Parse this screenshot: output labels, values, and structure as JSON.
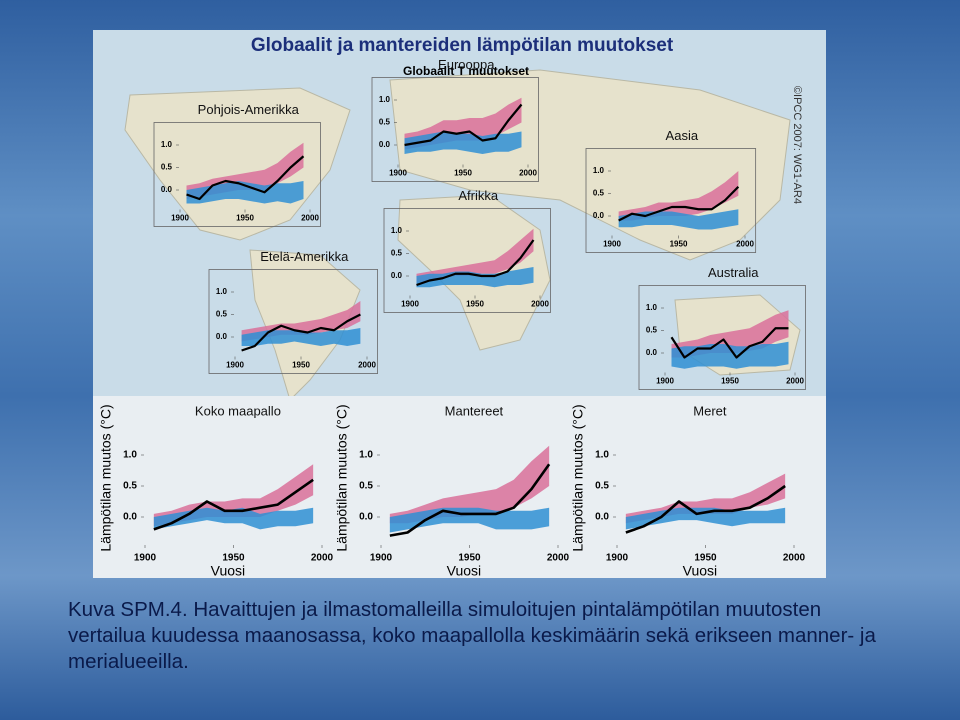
{
  "figure_title": "Globaalit ja mantereiden lämpötilan muutokset",
  "overlay_label": "Globaalit T muutokset",
  "copyright": "©IPCC 2007: WG1-AR4",
  "caption": "Kuva SPM.4. Havaittujen ja ilmastomalleilla simuloitujen pintalämpötilan muutosten vertailua kuudessa maanosassa, koko maapallolla keskimäärin sekä erikseen manner- ja merialueeilla.",
  "chart_data": [
    {
      "type": "line",
      "title": "Pohjois-Amerikka",
      "x": [
        1905,
        1915,
        1925,
        1935,
        1945,
        1955,
        1965,
        1975,
        1985,
        1995
      ],
      "xlim": [
        1900,
        2005
      ],
      "xticks": [
        1900,
        1950,
        2000
      ],
      "ylim": [
        -0.5,
        1.5
      ],
      "yticks": [
        {
          "value": 0,
          "label": "0.0"
        },
        {
          "value": 0.5,
          "label": "0.5"
        },
        {
          "value": 1,
          "label": "1.0"
        }
      ],
      "series": [
        {
          "color": "#000000",
          "values": [
            -0.1,
            -0.2,
            0.1,
            0.2,
            0.15,
            0.05,
            -0.05,
            0.2,
            0.5,
            0.75
          ]
        }
      ],
      "bands": [
        {
          "color": "#d9709a",
          "low": [
            -0.2,
            -0.15,
            -0.1,
            -0.05,
            0,
            0,
            0,
            0.15,
            0.3,
            0.5
          ],
          "high": [
            0.1,
            0.15,
            0.25,
            0.3,
            0.35,
            0.4,
            0.45,
            0.6,
            0.85,
            1.05
          ]
        },
        {
          "color": "#2f8fd3",
          "low": [
            -0.3,
            -0.3,
            -0.25,
            -0.2,
            -0.2,
            -0.25,
            -0.3,
            -0.25,
            -0.3,
            -0.2
          ],
          "high": [
            0.0,
            0.05,
            0.1,
            0.15,
            0.2,
            0.15,
            0.1,
            0.15,
            0.15,
            0.2
          ]
        }
      ]
    },
    {
      "type": "line",
      "title": "Eurooppa",
      "x": [
        1905,
        1915,
        1925,
        1935,
        1945,
        1955,
        1965,
        1975,
        1985,
        1995
      ],
      "xlim": [
        1900,
        2005
      ],
      "xticks": [
        1900,
        1950,
        2000
      ],
      "ylim": [
        -0.5,
        1.5
      ],
      "yticks": [
        {
          "value": 0,
          "label": "0.0"
        },
        {
          "value": 0.5,
          "label": "0.5"
        },
        {
          "value": 1,
          "label": "1.0"
        }
      ],
      "series": [
        {
          "color": "#000000",
          "values": [
            0.0,
            0.05,
            0.1,
            0.3,
            0.25,
            0.3,
            0.1,
            0.15,
            0.55,
            0.9
          ]
        }
      ],
      "bands": [
        {
          "color": "#d9709a",
          "low": [
            -0.1,
            -0.05,
            0,
            0.05,
            0.1,
            0.1,
            0.1,
            0.2,
            0.35,
            0.5
          ],
          "high": [
            0.25,
            0.3,
            0.4,
            0.55,
            0.55,
            0.6,
            0.6,
            0.7,
            0.9,
            1.05
          ]
        },
        {
          "color": "#2f8fd3",
          "low": [
            -0.2,
            -0.15,
            -0.15,
            -0.1,
            -0.1,
            -0.15,
            -0.2,
            -0.15,
            -0.15,
            -0.05
          ],
          "high": [
            0.15,
            0.2,
            0.25,
            0.3,
            0.25,
            0.25,
            0.2,
            0.25,
            0.25,
            0.3
          ]
        }
      ]
    },
    {
      "type": "line",
      "title": "Aasia",
      "x": [
        1905,
        1915,
        1925,
        1935,
        1945,
        1955,
        1965,
        1975,
        1985,
        1995
      ],
      "xlim": [
        1900,
        2005
      ],
      "xticks": [
        1900,
        1950,
        2000
      ],
      "ylim": [
        -0.5,
        1.5
      ],
      "yticks": [
        {
          "value": 0,
          "label": "0.0"
        },
        {
          "value": 0.5,
          "label": "0.5"
        },
        {
          "value": 1,
          "label": "1.0"
        }
      ],
      "series": [
        {
          "color": "#000000",
          "values": [
            -0.1,
            0.05,
            0.0,
            0.1,
            0.2,
            0.2,
            0.15,
            0.15,
            0.35,
            0.65
          ]
        }
      ],
      "bands": [
        {
          "color": "#d9709a",
          "low": [
            -0.1,
            -0.1,
            -0.05,
            0,
            0,
            0,
            0.05,
            0.15,
            0.3,
            0.45
          ],
          "high": [
            0.1,
            0.15,
            0.2,
            0.3,
            0.3,
            0.35,
            0.4,
            0.55,
            0.75,
            1.0
          ]
        },
        {
          "color": "#2f8fd3",
          "low": [
            -0.25,
            -0.25,
            -0.2,
            -0.2,
            -0.2,
            -0.25,
            -0.3,
            -0.3,
            -0.25,
            -0.2
          ],
          "high": [
            0.0,
            0.05,
            0.1,
            0.1,
            0.1,
            0.05,
            0.0,
            0.05,
            0.1,
            0.15
          ]
        }
      ]
    },
    {
      "type": "line",
      "title": "Afrikka",
      "x": [
        1905,
        1915,
        1925,
        1935,
        1945,
        1955,
        1965,
        1975,
        1985,
        1995
      ],
      "xlim": [
        1900,
        2005
      ],
      "xticks": [
        1900,
        1950,
        2000
      ],
      "ylim": [
        -0.5,
        1.5
      ],
      "yticks": [
        {
          "value": 0,
          "label": "0.0"
        },
        {
          "value": 0.5,
          "label": "0.5"
        },
        {
          "value": 1,
          "label": "1.0"
        }
      ],
      "series": [
        {
          "color": "#000000",
          "values": [
            -0.2,
            -0.1,
            -0.05,
            0.05,
            0.05,
            0.0,
            0.0,
            0.1,
            0.4,
            0.8
          ]
        }
      ],
      "bands": [
        {
          "color": "#d9709a",
          "low": [
            -0.15,
            -0.1,
            -0.05,
            0,
            0,
            0.05,
            0.05,
            0.15,
            0.3,
            0.55
          ],
          "high": [
            0.05,
            0.1,
            0.15,
            0.2,
            0.25,
            0.3,
            0.35,
            0.55,
            0.8,
            1.05
          ]
        },
        {
          "color": "#2f8fd3",
          "low": [
            -0.25,
            -0.25,
            -0.2,
            -0.2,
            -0.2,
            -0.2,
            -0.25,
            -0.2,
            -0.2,
            -0.15
          ],
          "high": [
            0.0,
            0.05,
            0.05,
            0.1,
            0.1,
            0.05,
            0.05,
            0.1,
            0.15,
            0.2
          ]
        }
      ]
    },
    {
      "type": "line",
      "title": "Etelä-Amerikka",
      "x": [
        1905,
        1915,
        1925,
        1935,
        1945,
        1955,
        1965,
        1975,
        1985,
        1995
      ],
      "xlim": [
        1900,
        2005
      ],
      "xticks": [
        1900,
        1950,
        2000
      ],
      "ylim": [
        -0.5,
        1.5
      ],
      "yticks": [
        {
          "value": 0,
          "label": "0.0"
        },
        {
          "value": 0.5,
          "label": "0.5"
        },
        {
          "value": 1,
          "label": "1.0"
        }
      ],
      "series": [
        {
          "color": "#000000",
          "values": [
            -0.3,
            -0.2,
            0.1,
            0.25,
            0.15,
            0.1,
            0.2,
            0.15,
            0.35,
            0.5
          ]
        }
      ],
      "bands": [
        {
          "color": "#d9709a",
          "low": [
            -0.1,
            -0.05,
            0,
            0.05,
            0.05,
            0.05,
            0.1,
            0.15,
            0.2,
            0.35
          ],
          "high": [
            0.15,
            0.2,
            0.25,
            0.3,
            0.3,
            0.35,
            0.4,
            0.5,
            0.6,
            0.8
          ]
        },
        {
          "color": "#2f8fd3",
          "low": [
            -0.2,
            -0.2,
            -0.15,
            -0.15,
            -0.1,
            -0.15,
            -0.2,
            -0.15,
            -0.2,
            -0.15
          ],
          "high": [
            0.05,
            0.1,
            0.15,
            0.15,
            0.15,
            0.1,
            0.1,
            0.15,
            0.15,
            0.2
          ]
        }
      ]
    },
    {
      "type": "line",
      "title": "Australia",
      "x": [
        1905,
        1915,
        1925,
        1935,
        1945,
        1955,
        1965,
        1975,
        1985,
        1995
      ],
      "xlim": [
        1900,
        2005
      ],
      "xticks": [
        1900,
        1950,
        2000
      ],
      "ylim": [
        -0.5,
        1.5
      ],
      "yticks": [
        {
          "value": 0,
          "label": "0.0"
        },
        {
          "value": 0.5,
          "label": "0.5"
        },
        {
          "value": 1,
          "label": "1.0"
        }
      ],
      "series": [
        {
          "color": "#000000",
          "values": [
            0.35,
            -0.1,
            0.1,
            0.1,
            0.3,
            -0.1,
            0.15,
            0.25,
            0.55,
            0.55
          ]
        }
      ],
      "bands": [
        {
          "color": "#d9709a",
          "low": [
            -0.1,
            -0.1,
            -0.05,
            0,
            0,
            0,
            0.05,
            0.1,
            0.25,
            0.35
          ],
          "high": [
            0.2,
            0.25,
            0.3,
            0.4,
            0.45,
            0.5,
            0.55,
            0.7,
            0.85,
            0.95
          ]
        },
        {
          "color": "#2f8fd3",
          "low": [
            -0.3,
            -0.35,
            -0.3,
            -0.3,
            -0.3,
            -0.35,
            -0.3,
            -0.3,
            -0.3,
            -0.25
          ],
          "high": [
            0.1,
            0.15,
            0.15,
            0.2,
            0.2,
            0.15,
            0.15,
            0.2,
            0.2,
            0.25
          ]
        }
      ]
    },
    {
      "type": "line",
      "title": "Koko maapallo",
      "ylabel": "Lämpötilan muutos (°C)",
      "xlabel": "Vuosi",
      "x": [
        1905,
        1915,
        1925,
        1935,
        1945,
        1955,
        1965,
        1975,
        1985,
        1995
      ],
      "xlim": [
        1900,
        2005
      ],
      "xticks": [
        1900,
        1950,
        2000
      ],
      "ylim": [
        -0.5,
        1.5
      ],
      "yticks": [
        {
          "value": 0,
          "label": "0.0"
        },
        {
          "value": 0.5,
          "label": "0.5"
        },
        {
          "value": 1,
          "label": "1.0"
        }
      ],
      "series": [
        {
          "color": "#000000",
          "values": [
            -0.2,
            -0.1,
            0.05,
            0.25,
            0.1,
            0.1,
            0.15,
            0.2,
            0.4,
            0.6
          ]
        }
      ],
      "bands": [
        {
          "color": "#d9709a",
          "low": [
            -0.15,
            -0.1,
            -0.05,
            0.0,
            0.0,
            0.0,
            0.0,
            0.1,
            0.2,
            0.35
          ],
          "high": [
            0.05,
            0.1,
            0.2,
            0.25,
            0.25,
            0.3,
            0.3,
            0.45,
            0.65,
            0.85
          ]
        },
        {
          "color": "#2f8fd3",
          "low": [
            -0.2,
            -0.15,
            -0.1,
            -0.05,
            -0.1,
            -0.1,
            -0.2,
            -0.15,
            -0.15,
            -0.1
          ],
          "high": [
            0.0,
            0.05,
            0.1,
            0.15,
            0.1,
            0.15,
            0.05,
            0.1,
            0.1,
            0.15
          ]
        }
      ]
    },
    {
      "type": "line",
      "title": "Mantereet",
      "ylabel": "Lämpötilan muutos (°C)",
      "xlabel": "Vuosi",
      "x": [
        1905,
        1915,
        1925,
        1935,
        1945,
        1955,
        1965,
        1975,
        1985,
        1995
      ],
      "xlim": [
        1900,
        2005
      ],
      "xticks": [
        1900,
        1950,
        2000
      ],
      "ylim": [
        -0.5,
        1.5
      ],
      "yticks": [
        {
          "value": 0,
          "label": "0.0"
        },
        {
          "value": 0.5,
          "label": "0.5"
        },
        {
          "value": 1,
          "label": "1.0"
        }
      ],
      "series": [
        {
          "color": "#000000",
          "values": [
            -0.3,
            -0.25,
            -0.05,
            0.1,
            0.05,
            0.05,
            0.05,
            0.15,
            0.45,
            0.85
          ]
        }
      ],
      "bands": [
        {
          "color": "#d9709a",
          "low": [
            -0.1,
            -0.1,
            -0.05,
            0,
            0,
            0.05,
            0.05,
            0.15,
            0.3,
            0.5
          ],
          "high": [
            0.05,
            0.1,
            0.2,
            0.3,
            0.35,
            0.4,
            0.45,
            0.6,
            0.9,
            1.15
          ]
        },
        {
          "color": "#2f8fd3",
          "low": [
            -0.25,
            -0.2,
            -0.15,
            -0.1,
            -0.1,
            -0.1,
            -0.2,
            -0.2,
            -0.2,
            -0.15
          ],
          "high": [
            0.0,
            0.05,
            0.1,
            0.15,
            0.15,
            0.15,
            0.1,
            0.1,
            0.1,
            0.15
          ]
        }
      ]
    },
    {
      "type": "line",
      "title": "Meret",
      "ylabel": "Lämpötilan muutos (°C)",
      "xlabel": "Vuosi",
      "x": [
        1905,
        1915,
        1925,
        1935,
        1945,
        1955,
        1965,
        1975,
        1985,
        1995
      ],
      "xlim": [
        1900,
        2005
      ],
      "xticks": [
        1900,
        1950,
        2000
      ],
      "ylim": [
        -0.5,
        1.5
      ],
      "yticks": [
        {
          "value": 0,
          "label": "0.0"
        },
        {
          "value": 0.5,
          "label": "0.5"
        },
        {
          "value": 1,
          "label": "1.0"
        }
      ],
      "series": [
        {
          "color": "#000000",
          "values": [
            -0.25,
            -0.15,
            0.0,
            0.25,
            0.05,
            0.1,
            0.1,
            0.15,
            0.3,
            0.5
          ]
        }
      ],
      "bands": [
        {
          "color": "#d9709a",
          "low": [
            -0.1,
            -0.05,
            0,
            0.05,
            0.05,
            0.05,
            0.05,
            0.15,
            0.2,
            0.3
          ],
          "high": [
            0.05,
            0.1,
            0.15,
            0.25,
            0.25,
            0.3,
            0.3,
            0.4,
            0.55,
            0.7
          ]
        },
        {
          "color": "#2f8fd3",
          "low": [
            -0.2,
            -0.15,
            -0.1,
            -0.05,
            -0.05,
            -0.1,
            -0.15,
            -0.1,
            -0.1,
            -0.1
          ],
          "high": [
            0.0,
            0.05,
            0.1,
            0.15,
            0.15,
            0.15,
            0.1,
            0.1,
            0.1,
            0.15
          ]
        }
      ]
    }
  ]
}
